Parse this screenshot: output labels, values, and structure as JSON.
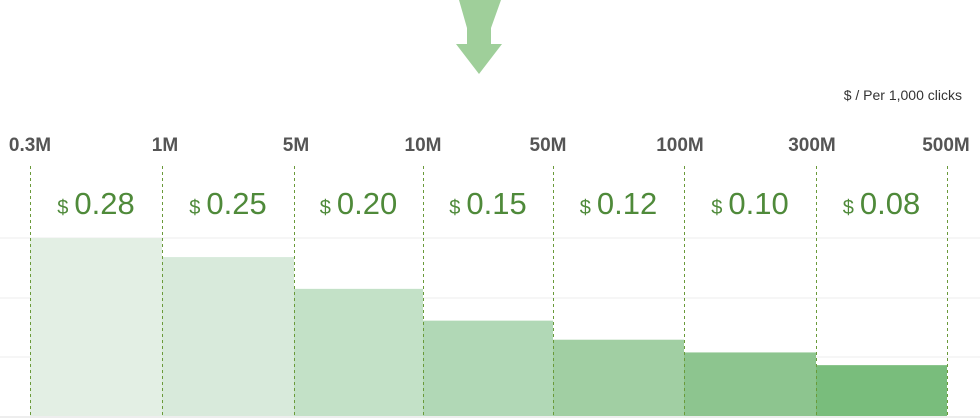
{
  "unit_note": "$ / Per 1,000 clicks",
  "currency_symbol": "$",
  "colors": {
    "arrow": "#9fcf9a",
    "divider": "#6a9a3a",
    "price_text": "#4f8a3a",
    "bars": [
      "#e3efe4",
      "#d8eadb",
      "#c3e1c7",
      "#b1d8b6",
      "#a1cfa3",
      "#8dc58f",
      "#79bd7c"
    ]
  },
  "chart_data": {
    "type": "bar",
    "tick_labels": [
      "0.3M",
      "1M",
      "5M",
      "10M",
      "50M",
      "100M",
      "300M",
      "500M"
    ],
    "categories": [
      "0.3M–1M",
      "1M–5M",
      "5M–10M",
      "10M–50M",
      "50M–100M",
      "100M–300M",
      "300M–500M"
    ],
    "price_labels": [
      "0.28",
      "0.25",
      "0.20",
      "0.15",
      "0.12",
      "0.10",
      "0.08"
    ],
    "values": [
      0.28,
      0.25,
      0.2,
      0.15,
      0.12,
      0.1,
      0.08
    ],
    "ylim": [
      0,
      0.28
    ],
    "grid": true,
    "title": "",
    "xlabel": "",
    "ylabel": ""
  }
}
